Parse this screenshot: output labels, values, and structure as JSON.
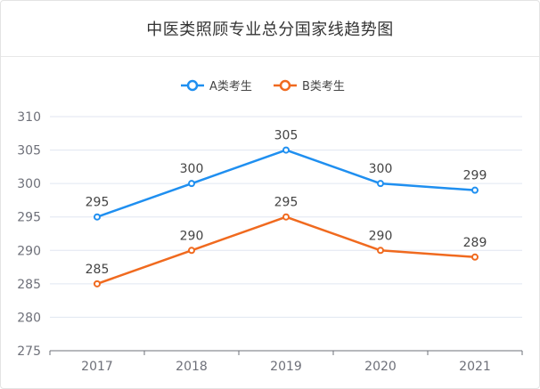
{
  "header": {
    "title": "中医类照顾专业总分国家线趋势图"
  },
  "chart_data": {
    "type": "line",
    "title": "中医类照顾专业总分国家线趋势图",
    "categories": [
      "2017",
      "2018",
      "2019",
      "2020",
      "2021"
    ],
    "series": [
      {
        "name": "A类考生",
        "color": "#1f8ff0",
        "values": [
          295,
          300,
          305,
          300,
          299
        ]
      },
      {
        "name": "B类考生",
        "color": "#f06a1f",
        "values": [
          285,
          290,
          295,
          290,
          289
        ]
      }
    ],
    "ylim": [
      275,
      310
    ],
    "yticks": [
      275,
      280,
      285,
      290,
      295,
      300,
      305,
      310
    ],
    "grid": true,
    "legend_position": "top-center",
    "data_labels": true,
    "xlabel": "",
    "ylabel": ""
  }
}
